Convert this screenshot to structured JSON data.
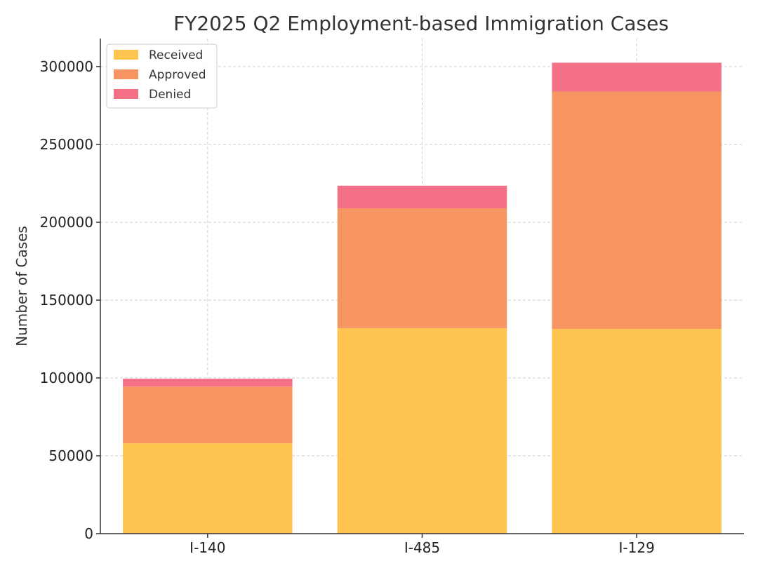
{
  "chart_data": {
    "type": "bar",
    "stacked": true,
    "title": "FY2025 Q2 Employment-based Immigration Cases",
    "xlabel": "",
    "ylabel": "Number of Cases",
    "categories": [
      "I-140",
      "I-485",
      "I-129"
    ],
    "series": [
      {
        "name": "Received",
        "color": "#FEC44F",
        "values": [
          58000,
          132000,
          131500
        ]
      },
      {
        "name": "Approved",
        "color": "#F69562",
        "values": [
          36500,
          77000,
          152500
        ]
      },
      {
        "name": "Denied",
        "color": "#F47087",
        "values": [
          5000,
          14500,
          18500
        ]
      }
    ],
    "ylim": [
      0,
      318000
    ],
    "yticks": [
      0,
      50000,
      100000,
      150000,
      200000,
      250000,
      300000
    ],
    "grid": true,
    "legend_position": "top-left"
  }
}
